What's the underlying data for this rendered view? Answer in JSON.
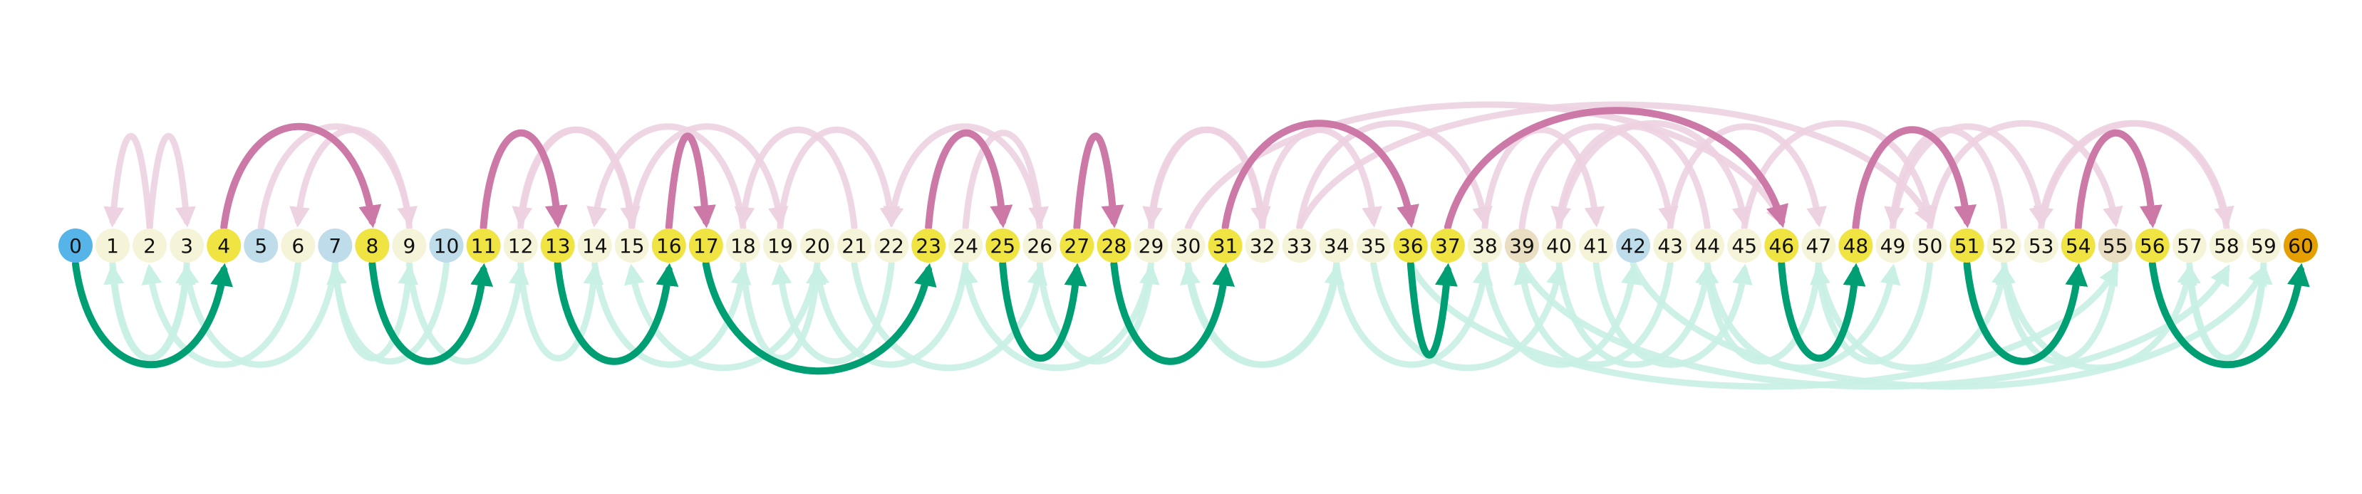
{
  "colors": {
    "start": "#56B4E9",
    "end": "#E69F00",
    "path_node": "#F0E442",
    "plain_node": "#F6F4D8",
    "blue_node": "#BFDCEB",
    "tan_node": "#E9DDC2",
    "forward_arc": "#CC79A7",
    "backward_arc": "#009E73",
    "faint_forward_arc": "#EDD2E1",
    "faint_backward_arc": "#C9F0E4"
  },
  "nodes": [
    {
      "id": 0,
      "label": "0",
      "kind": "start"
    },
    {
      "id": 1,
      "label": "1",
      "kind": "plain"
    },
    {
      "id": 2,
      "label": "2",
      "kind": "plain"
    },
    {
      "id": 3,
      "label": "3",
      "kind": "plain"
    },
    {
      "id": 4,
      "label": "4",
      "kind": "path"
    },
    {
      "id": 5,
      "label": "5",
      "kind": "blue"
    },
    {
      "id": 6,
      "label": "6",
      "kind": "plain"
    },
    {
      "id": 7,
      "label": "7",
      "kind": "blue"
    },
    {
      "id": 8,
      "label": "8",
      "kind": "path"
    },
    {
      "id": 9,
      "label": "9",
      "kind": "plain"
    },
    {
      "id": 10,
      "label": "10",
      "kind": "blue"
    },
    {
      "id": 11,
      "label": "11",
      "kind": "path"
    },
    {
      "id": 12,
      "label": "12",
      "kind": "plain"
    },
    {
      "id": 13,
      "label": "13",
      "kind": "path"
    },
    {
      "id": 14,
      "label": "14",
      "kind": "plain"
    },
    {
      "id": 15,
      "label": "15",
      "kind": "plain"
    },
    {
      "id": 16,
      "label": "16",
      "kind": "path"
    },
    {
      "id": 17,
      "label": "17",
      "kind": "path"
    },
    {
      "id": 18,
      "label": "18",
      "kind": "plain"
    },
    {
      "id": 19,
      "label": "19",
      "kind": "plain"
    },
    {
      "id": 20,
      "label": "20",
      "kind": "plain"
    },
    {
      "id": 21,
      "label": "21",
      "kind": "plain"
    },
    {
      "id": 22,
      "label": "22",
      "kind": "plain"
    },
    {
      "id": 23,
      "label": "23",
      "kind": "path"
    },
    {
      "id": 24,
      "label": "24",
      "kind": "plain"
    },
    {
      "id": 25,
      "label": "25",
      "kind": "path"
    },
    {
      "id": 26,
      "label": "26",
      "kind": "plain"
    },
    {
      "id": 27,
      "label": "27",
      "kind": "path"
    },
    {
      "id": 28,
      "label": "28",
      "kind": "path"
    },
    {
      "id": 29,
      "label": "29",
      "kind": "plain"
    },
    {
      "id": 30,
      "label": "30",
      "kind": "plain"
    },
    {
      "id": 31,
      "label": "31",
      "kind": "path"
    },
    {
      "id": 32,
      "label": "32",
      "kind": "plain"
    },
    {
      "id": 33,
      "label": "33",
      "kind": "plain"
    },
    {
      "id": 34,
      "label": "34",
      "kind": "plain"
    },
    {
      "id": 35,
      "label": "35",
      "kind": "plain"
    },
    {
      "id": 36,
      "label": "36",
      "kind": "path"
    },
    {
      "id": 37,
      "label": "37",
      "kind": "path"
    },
    {
      "id": 38,
      "label": "38",
      "kind": "plain"
    },
    {
      "id": 39,
      "label": "39",
      "kind": "tan"
    },
    {
      "id": 40,
      "label": "40",
      "kind": "plain"
    },
    {
      "id": 41,
      "label": "41",
      "kind": "plain"
    },
    {
      "id": 42,
      "label": "42",
      "kind": "blue"
    },
    {
      "id": 43,
      "label": "43",
      "kind": "plain"
    },
    {
      "id": 44,
      "label": "44",
      "kind": "plain"
    },
    {
      "id": 45,
      "label": "45",
      "kind": "plain"
    },
    {
      "id": 46,
      "label": "46",
      "kind": "path"
    },
    {
      "id": 47,
      "label": "47",
      "kind": "plain"
    },
    {
      "id": 48,
      "label": "48",
      "kind": "path"
    },
    {
      "id": 49,
      "label": "49",
      "kind": "plain"
    },
    {
      "id": 50,
      "label": "50",
      "kind": "plain"
    },
    {
      "id": 51,
      "label": "51",
      "kind": "path"
    },
    {
      "id": 52,
      "label": "52",
      "kind": "plain"
    },
    {
      "id": 53,
      "label": "53",
      "kind": "plain"
    },
    {
      "id": 54,
      "label": "54",
      "kind": "path"
    },
    {
      "id": 55,
      "label": "55",
      "kind": "tan"
    },
    {
      "id": 56,
      "label": "56",
      "kind": "path"
    },
    {
      "id": 57,
      "label": "57",
      "kind": "plain"
    },
    {
      "id": 58,
      "label": "58",
      "kind": "plain"
    },
    {
      "id": 59,
      "label": "59",
      "kind": "plain"
    },
    {
      "id": 60,
      "label": "60",
      "kind": "end"
    }
  ],
  "highlighted_path": [
    {
      "from": 0,
      "to": 4,
      "dir": "backward"
    },
    {
      "from": 4,
      "to": 8,
      "dir": "forward"
    },
    {
      "from": 8,
      "to": 11,
      "dir": "backward"
    },
    {
      "from": 11,
      "to": 13,
      "dir": "forward"
    },
    {
      "from": 13,
      "to": 16,
      "dir": "backward"
    },
    {
      "from": 16,
      "to": 17,
      "dir": "forward"
    },
    {
      "from": 17,
      "to": 23,
      "dir": "backward"
    },
    {
      "from": 23,
      "to": 25,
      "dir": "forward"
    },
    {
      "from": 25,
      "to": 27,
      "dir": "backward"
    },
    {
      "from": 27,
      "to": 28,
      "dir": "forward"
    },
    {
      "from": 28,
      "to": 31,
      "dir": "backward"
    },
    {
      "from": 31,
      "to": 36,
      "dir": "forward"
    },
    {
      "from": 36,
      "to": 37,
      "dir": "backward"
    },
    {
      "from": 37,
      "to": 46,
      "dir": "forward"
    },
    {
      "from": 46,
      "to": 48,
      "dir": "backward"
    },
    {
      "from": 48,
      "to": 51,
      "dir": "forward"
    },
    {
      "from": 51,
      "to": 54,
      "dir": "backward"
    },
    {
      "from": 54,
      "to": 56,
      "dir": "forward"
    },
    {
      "from": 56,
      "to": 60,
      "dir": "backward"
    }
  ],
  "faint_arcs": [
    {
      "from": 1,
      "to": 3,
      "dir": "backward"
    },
    {
      "from": 2,
      "to": 1,
      "dir": "forward"
    },
    {
      "from": 2,
      "to": 3,
      "dir": "forward"
    },
    {
      "from": 3,
      "to": 1,
      "dir": "backward"
    },
    {
      "from": 5,
      "to": 9,
      "dir": "forward"
    },
    {
      "from": 6,
      "to": 2,
      "dir": "backward"
    },
    {
      "from": 7,
      "to": 3,
      "dir": "backward"
    },
    {
      "from": 7,
      "to": 9,
      "dir": "backward"
    },
    {
      "from": 9,
      "to": 6,
      "dir": "forward"
    },
    {
      "from": 9,
      "to": 12,
      "dir": "backward"
    },
    {
      "from": 10,
      "to": 7,
      "dir": "backward"
    },
    {
      "from": 12,
      "to": 14,
      "dir": "backward"
    },
    {
      "from": 12,
      "to": 15,
      "dir": "forward"
    },
    {
      "from": 14,
      "to": 18,
      "dir": "backward"
    },
    {
      "from": 15,
      "to": 12,
      "dir": "forward"
    },
    {
      "from": 15,
      "to": 19,
      "dir": "forward"
    },
    {
      "from": 18,
      "to": 14,
      "dir": "forward"
    },
    {
      "from": 18,
      "to": 20,
      "dir": "backward"
    },
    {
      "from": 19,
      "to": 22,
      "dir": "forward"
    },
    {
      "from": 20,
      "to": 15,
      "dir": "backward"
    },
    {
      "from": 21,
      "to": 18,
      "dir": "forward"
    },
    {
      "from": 21,
      "to": 26,
      "dir": "backward"
    },
    {
      "from": 22,
      "to": 19,
      "dir": "backward"
    },
    {
      "from": 24,
      "to": 20,
      "dir": "backward"
    },
    {
      "from": 24,
      "to": 26,
      "dir": "forward"
    },
    {
      "from": 26,
      "to": 22,
      "dir": "forward"
    },
    {
      "from": 26,
      "to": 29,
      "dir": "backward"
    },
    {
      "from": 29,
      "to": 24,
      "dir": "backward"
    },
    {
      "from": 29,
      "to": 32,
      "dir": "forward"
    },
    {
      "from": 30,
      "to": 34,
      "dir": "backward"
    },
    {
      "from": 32,
      "to": 29,
      "dir": "forward"
    },
    {
      "from": 32,
      "to": 35,
      "dir": "forward"
    },
    {
      "from": 33,
      "to": 38,
      "dir": "forward"
    },
    {
      "from": 34,
      "to": 30,
      "dir": "backward"
    },
    {
      "from": 34,
      "to": 38,
      "dir": "backward"
    },
    {
      "from": 35,
      "to": 40,
      "dir": "backward"
    },
    {
      "from": 38,
      "to": 42,
      "dir": "backward"
    },
    {
      "from": 38,
      "to": 41,
      "dir": "forward"
    },
    {
      "from": 39,
      "to": 43,
      "dir": "forward"
    },
    {
      "from": 40,
      "to": 44,
      "dir": "backward"
    },
    {
      "from": 40,
      "to": 45,
      "dir": "forward"
    },
    {
      "from": 41,
      "to": 45,
      "dir": "backward"
    },
    {
      "from": 43,
      "to": 39,
      "dir": "backward"
    },
    {
      "from": 43,
      "to": 47,
      "dir": "forward"
    },
    {
      "from": 44,
      "to": 40,
      "dir": "forward"
    },
    {
      "from": 44,
      "to": 49,
      "dir": "backward"
    },
    {
      "from": 45,
      "to": 50,
      "dir": "forward"
    },
    {
      "from": 47,
      "to": 44,
      "dir": "backward"
    },
    {
      "from": 47,
      "to": 52,
      "dir": "backward"
    },
    {
      "from": 49,
      "to": 53,
      "dir": "forward"
    },
    {
      "from": 50,
      "to": 47,
      "dir": "backward"
    },
    {
      "from": 50,
      "to": 55,
      "dir": "forward"
    },
    {
      "from": 52,
      "to": 49,
      "dir": "forward"
    },
    {
      "from": 52,
      "to": 57,
      "dir": "backward"
    },
    {
      "from": 53,
      "to": 58,
      "dir": "forward"
    },
    {
      "from": 55,
      "to": 52,
      "dir": "backward"
    },
    {
      "from": 57,
      "to": 59,
      "dir": "backward"
    },
    {
      "from": 58,
      "to": 53,
      "dir": "forward"
    },
    {
      "from": 59,
      "to": 57,
      "dir": "backward"
    },
    {
      "from": 30,
      "to": 46,
      "dir": "forward"
    },
    {
      "from": 33,
      "to": 50,
      "dir": "forward"
    },
    {
      "from": 36,
      "to": 55,
      "dir": "backward"
    },
    {
      "from": 39,
      "to": 58,
      "dir": "backward"
    },
    {
      "from": 42,
      "to": 59,
      "dir": "backward"
    }
  ]
}
